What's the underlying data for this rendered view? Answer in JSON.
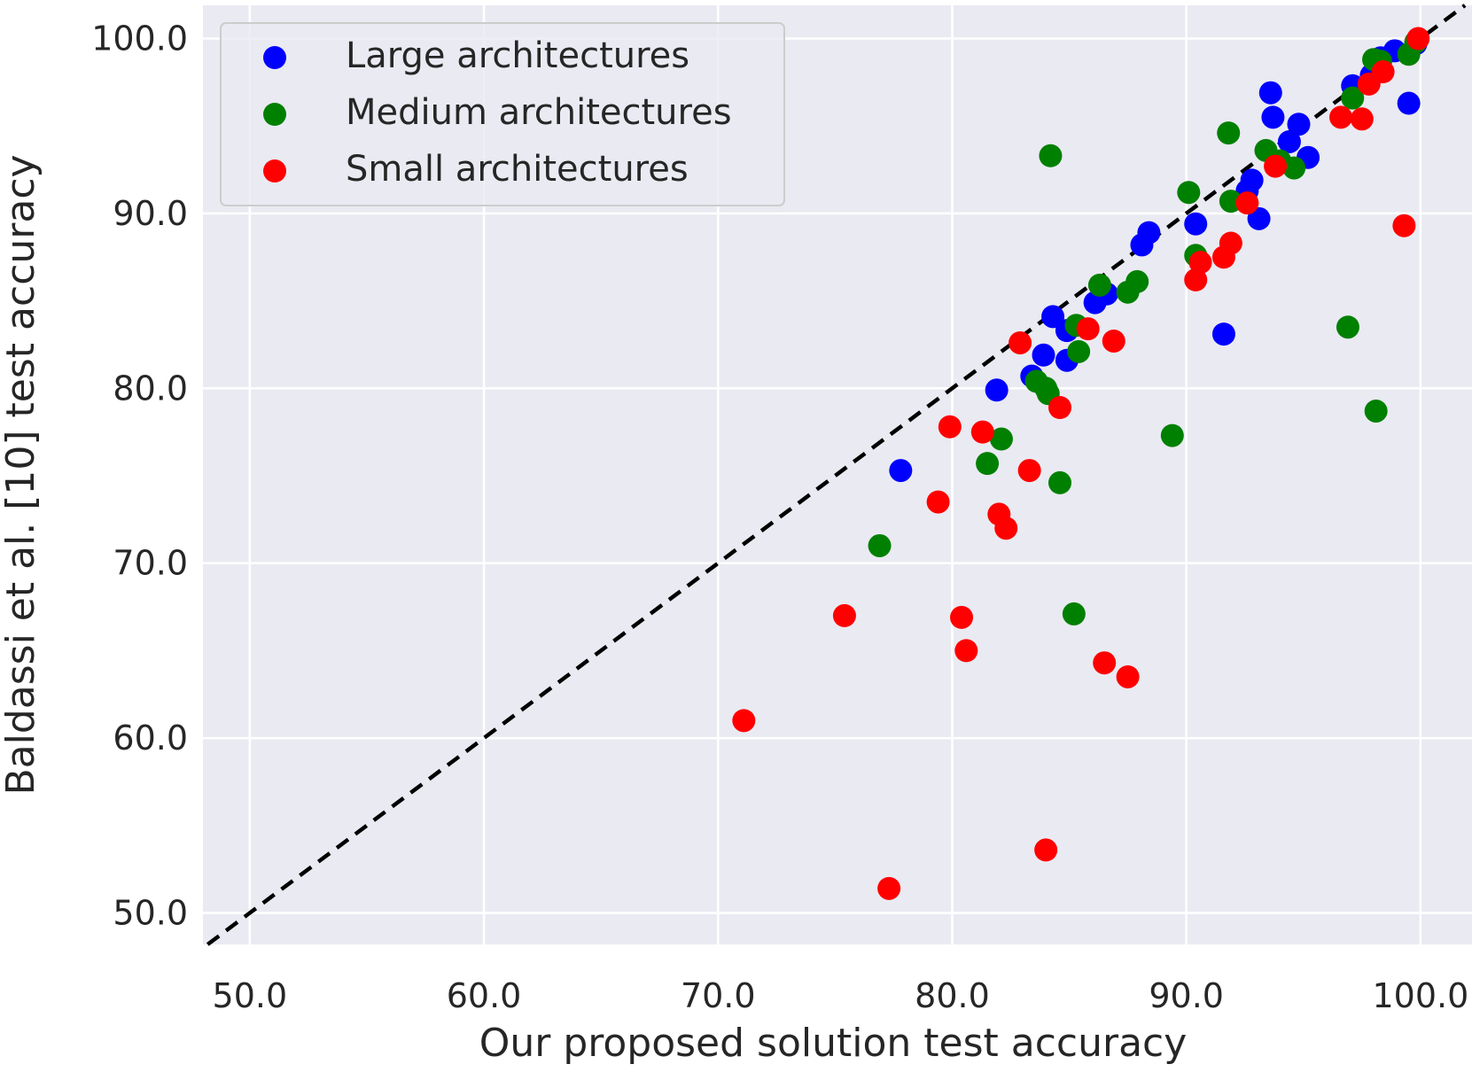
{
  "chart_data": {
    "type": "scatter",
    "title": "",
    "xlabel": "Our proposed solution test accuracy",
    "ylabel": "Baldassi et al. [10] test accuracy",
    "xlim": [
      48.0,
      102.2
    ],
    "ylim": [
      48.2,
      101.9
    ],
    "xticks": [
      50,
      60,
      70,
      80,
      90,
      100
    ],
    "yticks": [
      50,
      60,
      70,
      80,
      90,
      100
    ],
    "xtick_labels": [
      "50.0",
      "60.0",
      "70.0",
      "80.0",
      "90.0",
      "100.0"
    ],
    "ytick_labels": [
      "50.0",
      "60.0",
      "70.0",
      "80.0",
      "90.0",
      "100.0"
    ],
    "grid": true,
    "legend_position": "top-left",
    "reference_line": {
      "type": "y=x",
      "style": "dashed",
      "color": "#000000"
    },
    "colors": {
      "background": "#eaeaf2",
      "grid": "#ffffff",
      "text": "#262626"
    },
    "series": [
      {
        "name": "Large architectures",
        "color": "#0000ff",
        "points": [
          [
            77.8,
            75.3
          ],
          [
            81.9,
            79.9
          ],
          [
            83.4,
            80.7
          ],
          [
            83.9,
            81.9
          ],
          [
            84.3,
            84.1
          ],
          [
            84.9,
            81.6
          ],
          [
            84.9,
            83.3
          ],
          [
            86.1,
            84.9
          ],
          [
            86.6,
            85.4
          ],
          [
            88.1,
            88.2
          ],
          [
            88.4,
            88.9
          ],
          [
            90.4,
            89.4
          ],
          [
            91.6,
            83.1
          ],
          [
            92.6,
            91.3
          ],
          [
            92.8,
            91.9
          ],
          [
            93.1,
            89.7
          ],
          [
            93.6,
            96.9
          ],
          [
            93.7,
            95.5
          ],
          [
            94.4,
            94.1
          ],
          [
            94.8,
            95.1
          ],
          [
            95.2,
            93.2
          ],
          [
            97.1,
            97.3
          ],
          [
            97.9,
            97.9
          ],
          [
            98.3,
            98.9
          ],
          [
            98.9,
            99.3
          ],
          [
            99.5,
            96.3
          ],
          [
            99.8,
            99.7
          ]
        ]
      },
      {
        "name": "Medium architectures",
        "color": "#008000",
        "points": [
          [
            76.9,
            71.0
          ],
          [
            81.5,
            75.7
          ],
          [
            82.1,
            77.1
          ],
          [
            83.6,
            80.4
          ],
          [
            84.0,
            80.0
          ],
          [
            84.1,
            79.7
          ],
          [
            84.2,
            93.3
          ],
          [
            84.6,
            74.6
          ],
          [
            85.2,
            67.1
          ],
          [
            85.3,
            83.6
          ],
          [
            85.4,
            82.1
          ],
          [
            86.3,
            85.9
          ],
          [
            87.5,
            85.5
          ],
          [
            87.9,
            86.1
          ],
          [
            89.4,
            77.3
          ],
          [
            90.1,
            91.2
          ],
          [
            90.4,
            87.6
          ],
          [
            91.8,
            94.6
          ],
          [
            91.9,
            90.7
          ],
          [
            93.4,
            93.6
          ],
          [
            94.0,
            93.0
          ],
          [
            94.6,
            92.6
          ],
          [
            96.9,
            83.5
          ],
          [
            97.1,
            96.6
          ],
          [
            98.0,
            98.8
          ],
          [
            98.1,
            78.7
          ],
          [
            98.3,
            98.7
          ],
          [
            99.5,
            99.1
          ],
          [
            99.8,
            99.8
          ]
        ]
      },
      {
        "name": "Small architectures",
        "color": "#ff0000",
        "points": [
          [
            71.1,
            61.0
          ],
          [
            75.4,
            67.0
          ],
          [
            77.3,
            51.4
          ],
          [
            79.4,
            73.5
          ],
          [
            79.9,
            77.8
          ],
          [
            80.4,
            66.9
          ],
          [
            80.6,
            65.0
          ],
          [
            81.3,
            77.5
          ],
          [
            82.0,
            72.8
          ],
          [
            82.3,
            72.0
          ],
          [
            82.9,
            82.6
          ],
          [
            83.3,
            75.3
          ],
          [
            84.0,
            53.6
          ],
          [
            84.6,
            78.9
          ],
          [
            85.8,
            83.4
          ],
          [
            86.5,
            64.3
          ],
          [
            86.9,
            82.7
          ],
          [
            87.5,
            63.5
          ],
          [
            90.4,
            86.2
          ],
          [
            90.6,
            87.2
          ],
          [
            91.6,
            87.5
          ],
          [
            91.9,
            88.3
          ],
          [
            92.6,
            90.6
          ],
          [
            93.8,
            92.7
          ],
          [
            96.6,
            95.5
          ],
          [
            97.5,
            95.4
          ],
          [
            97.8,
            97.4
          ],
          [
            98.4,
            98.1
          ],
          [
            99.3,
            89.3
          ],
          [
            99.9,
            100.0
          ]
        ]
      }
    ]
  }
}
